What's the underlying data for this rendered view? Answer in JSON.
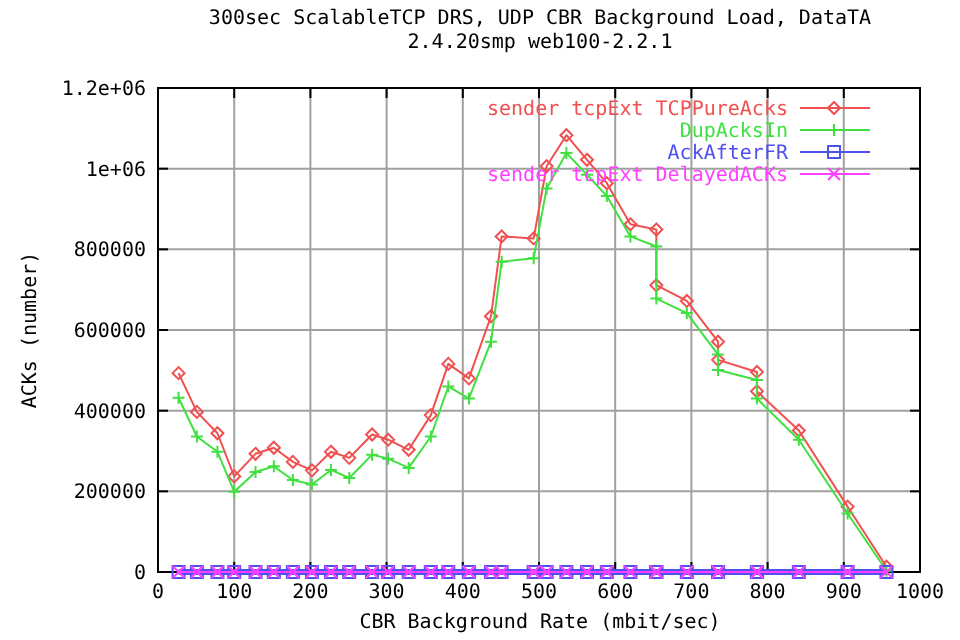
{
  "chart_data": {
    "type": "line",
    "title": "300sec ScalableTCP DRS, UDP CBR Background Load, DataTA",
    "subtitle": "2.4.20smp web100-2.2.1",
    "xlabel": "CBR Background Rate (mbit/sec)",
    "ylabel": "ACKs (number)",
    "x": [
      27,
      51,
      78,
      100,
      128,
      152,
      177,
      202,
      227,
      251,
      281,
      302,
      329,
      358,
      381,
      408,
      437,
      451,
      493,
      510,
      536,
      563,
      589,
      620,
      654,
      654,
      694,
      735,
      735,
      786,
      786,
      841,
      905,
      956
    ],
    "series": [
      {
        "name": "sender tcpExt TCPPureAcks",
        "color": "#f05050",
        "marker": "diamond",
        "values": [
          493000,
          397000,
          344000,
          237000,
          293000,
          308000,
          273000,
          252000,
          298000,
          283000,
          341000,
          328000,
          303000,
          389000,
          516000,
          480000,
          634000,
          832000,
          827000,
          1006000,
          1083000,
          1022000,
          964000,
          862000,
          849000,
          711000,
          672000,
          571000,
          526000,
          496000,
          448000,
          351000,
          162000,
          13000
        ]
      },
      {
        "name": "DupAcksIn",
        "color": "#40e040",
        "marker": "cross",
        "values": [
          432000,
          336000,
          298000,
          199000,
          248000,
          262000,
          228000,
          217000,
          253000,
          233000,
          291000,
          281000,
          258000,
          336000,
          460000,
          430000,
          571000,
          769000,
          778000,
          951000,
          1039000,
          985000,
          932000,
          832000,
          807000,
          678000,
          642000,
          539000,
          501000,
          476000,
          430000,
          328000,
          145000,
          3000
        ]
      },
      {
        "name": "AckAfterFR",
        "color": "#5050f0",
        "marker": "square",
        "values": [
          0,
          0,
          0,
          0,
          0,
          0,
          0,
          0,
          0,
          0,
          0,
          0,
          0,
          0,
          0,
          0,
          0,
          0,
          0,
          0,
          0,
          0,
          0,
          0,
          0,
          0,
          0,
          0,
          0,
          0,
          0,
          0,
          0,
          0
        ]
      },
      {
        "name": "sender tcpExt DelayedACKs",
        "color": "#ff40ff",
        "marker": "cross",
        "values": [
          0,
          0,
          0,
          0,
          0,
          0,
          0,
          0,
          0,
          0,
          0,
          0,
          0,
          0,
          0,
          0,
          0,
          0,
          0,
          0,
          0,
          0,
          0,
          0,
          0,
          0,
          0,
          0,
          0,
          0,
          0,
          0,
          0,
          0
        ]
      }
    ],
    "xlim": [
      0,
      1000
    ],
    "xticks": [
      0,
      100,
      200,
      300,
      400,
      500,
      600,
      700,
      800,
      900,
      1000
    ],
    "ylim": [
      0,
      1200000
    ],
    "yticks": [
      0,
      200000,
      400000,
      600000,
      800000,
      {
        "value": 1000000,
        "label": "1e+06"
      },
      {
        "value": 1200000,
        "label": "1.2e+06"
      }
    ],
    "grid": true,
    "legend": "top right",
    "line_style": "solid"
  }
}
